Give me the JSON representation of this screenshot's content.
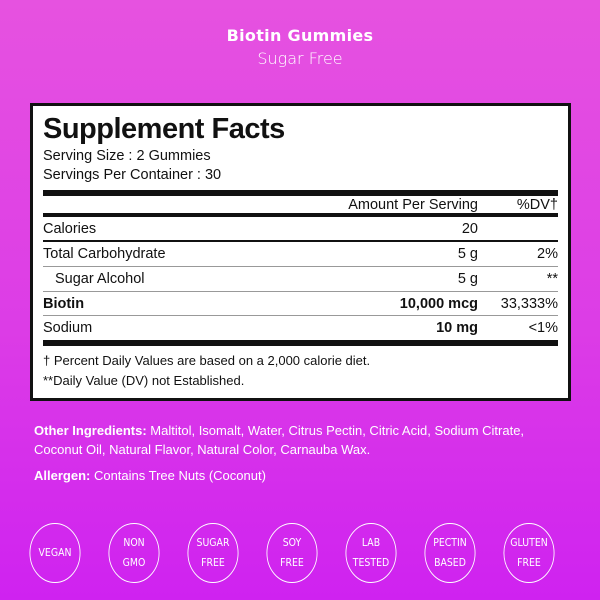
{
  "header": {
    "title": "Biotin Gummies",
    "subtitle": "Sugar Free"
  },
  "facts": {
    "title": "Supplement Facts",
    "serving_size": "Serving Size : 2 Gummies",
    "servings_per_container": "Servings Per Container : 30",
    "col_amount": "Amount Per Serving",
    "col_dv": "%DV†",
    "rows": [
      {
        "name": "Calories",
        "amount": "20",
        "dv": ""
      },
      {
        "name": "Total Carbohydrate",
        "amount": "5 g",
        "dv": "2%"
      },
      {
        "name": "Sugar Alcohol",
        "amount": "5 g",
        "dv": "**"
      },
      {
        "name": "Biotin",
        "amount": "10,000 mcg",
        "dv": "33,333%"
      },
      {
        "name": "Sodium",
        "amount": "10 mg",
        "dv": "<1%"
      }
    ],
    "footnote1": "† Percent Daily Values are based on a 2,000 calorie diet.",
    "footnote2": "**Daily Value (DV) not Established."
  },
  "ingredients": {
    "label": "Other Ingredients:",
    "text": " Maltitol, Isomalt, Water, Citrus Pectin, Citric Acid, Sodium Citrate, Coconut Oil, Natural Flavor, Natural Color, Carnauba Wax."
  },
  "allergen": {
    "label": "Allergen:",
    "text": " Contains Tree Nuts (Coconut)"
  },
  "badges": [
    "VEGAN",
    "NON\nGMO",
    "SUGAR\nFREE",
    "SOY\nFREE",
    "LAB\nTESTED",
    "PECTIN\nBASED",
    "GLUTEN\nFREE"
  ],
  "colors": {
    "background_top": "#e652e0",
    "background_bottom": "#cf22f0",
    "panel": "#ffffff",
    "text_dark": "#111111"
  }
}
